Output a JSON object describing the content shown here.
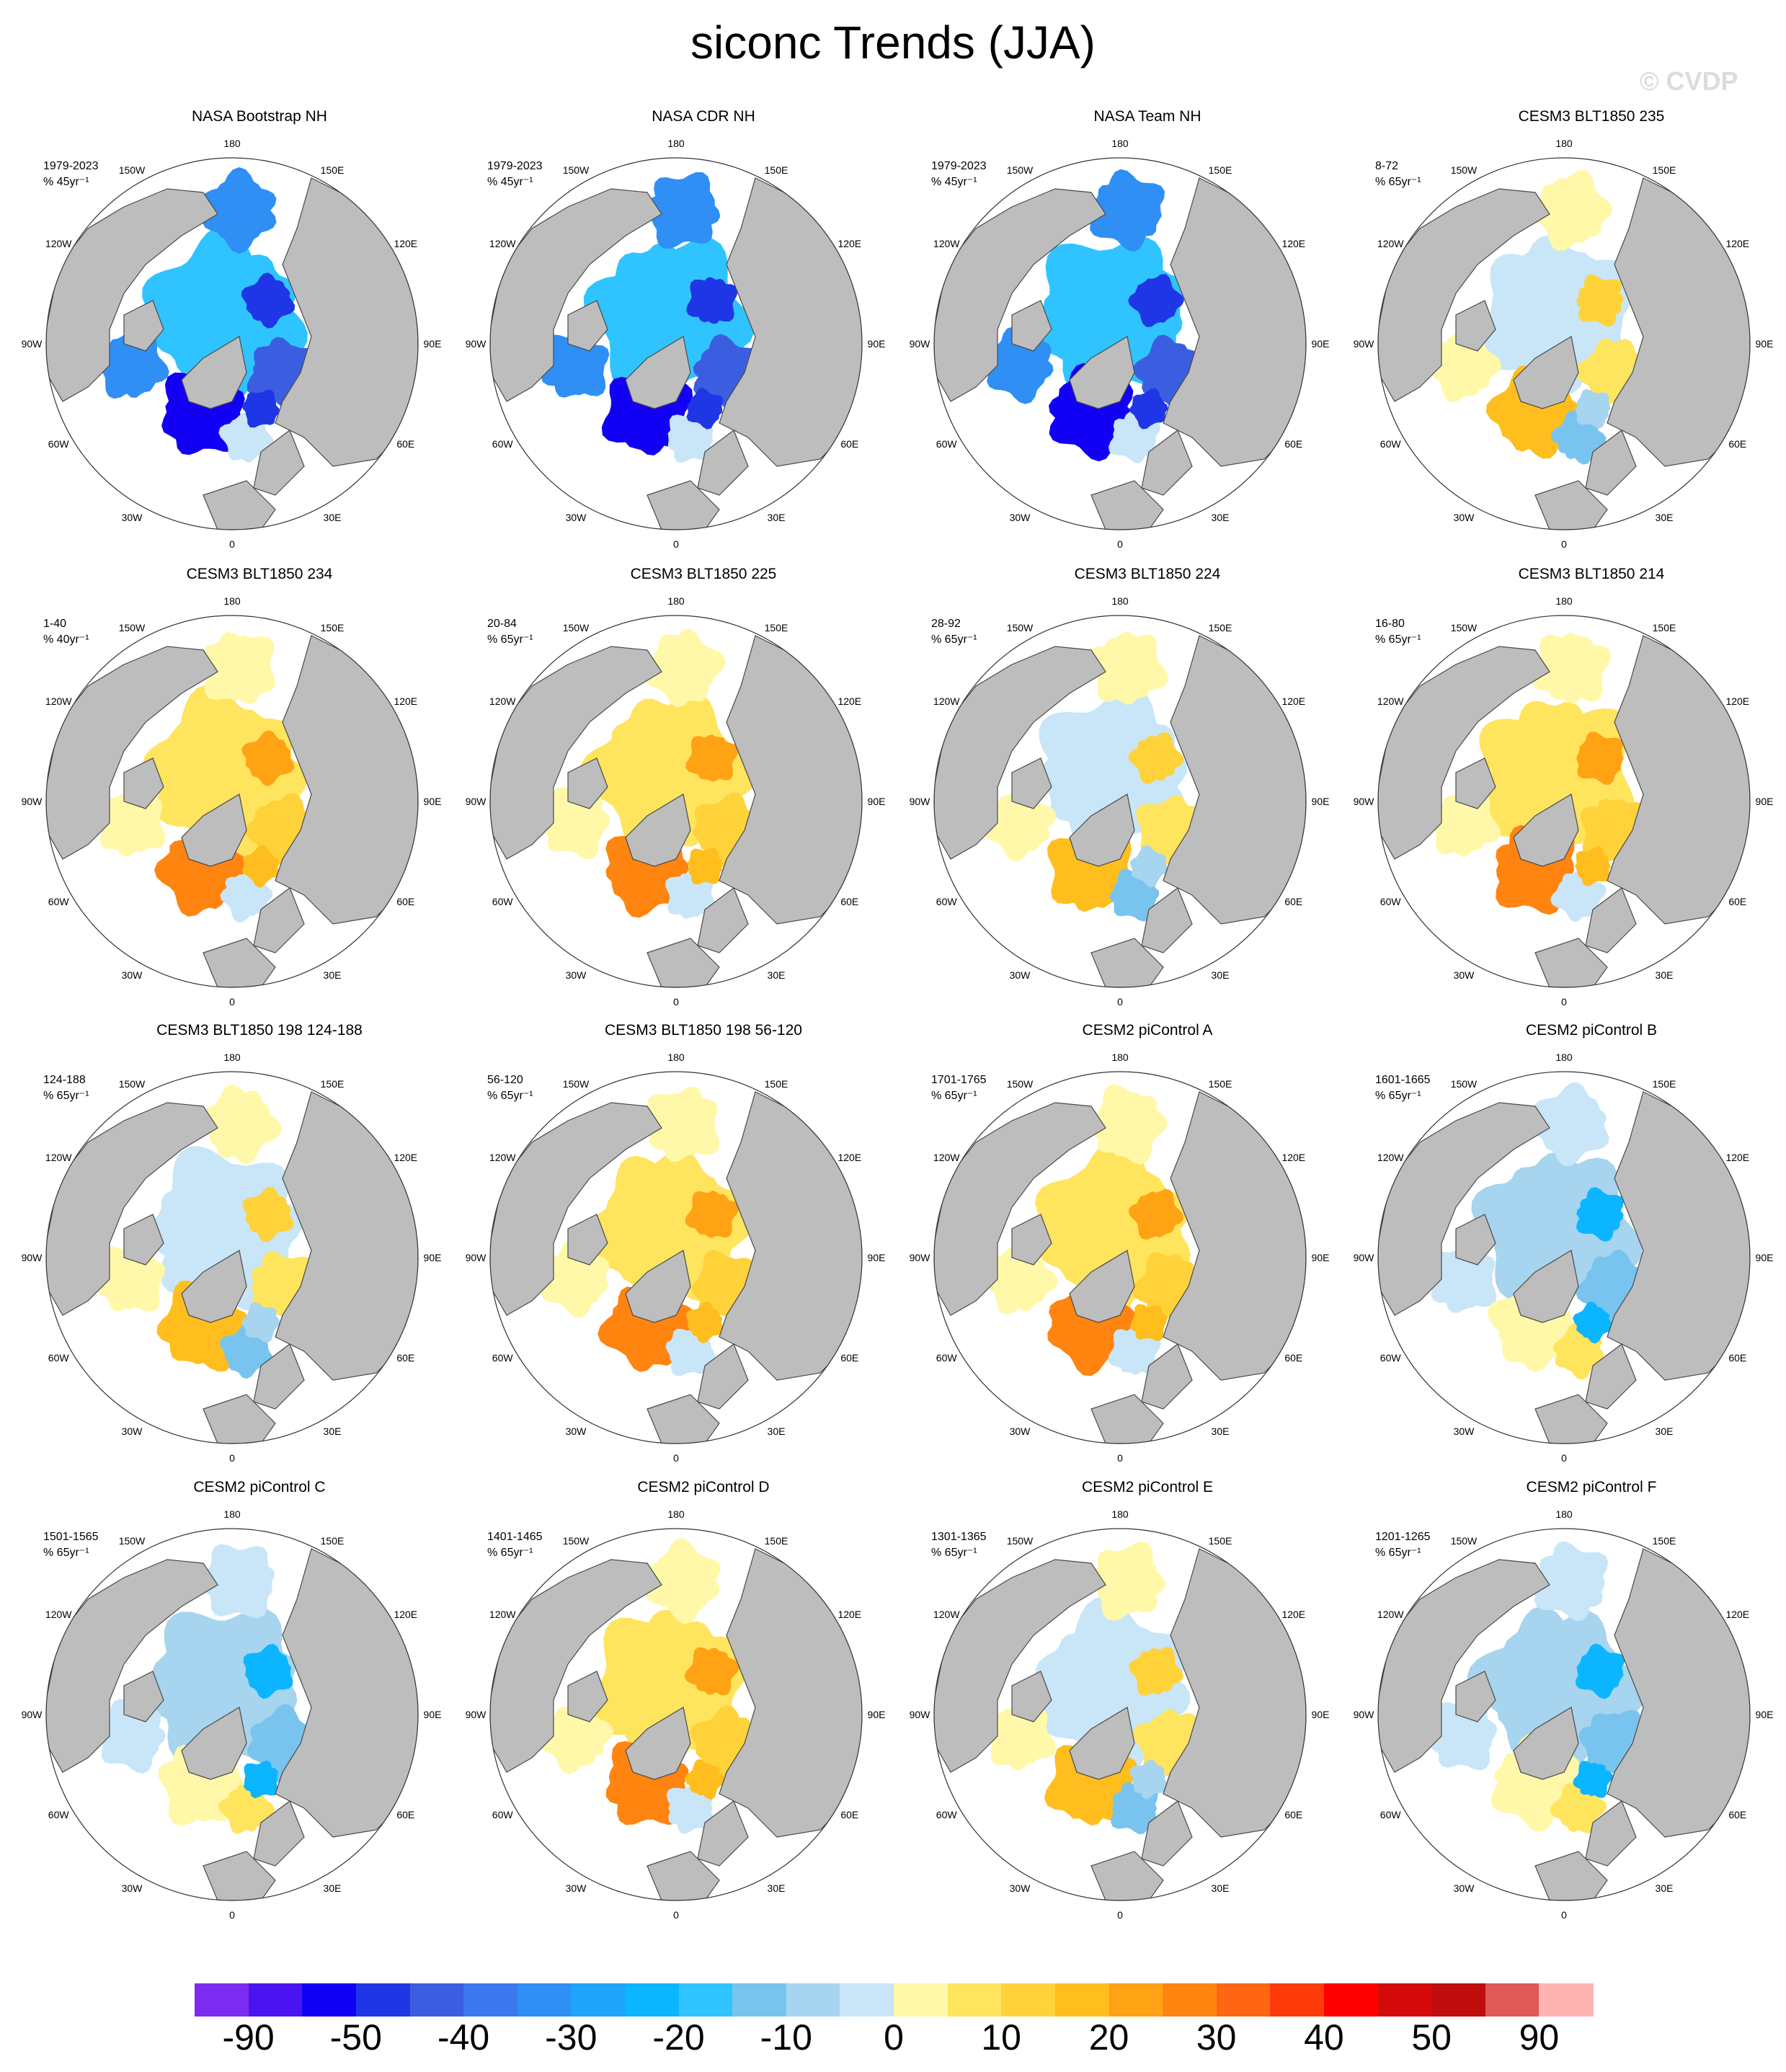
{
  "title": "siconc Trends (JJA)",
  "watermark": "© CVDP",
  "lon_labels": [
    "180",
    "150E",
    "120E",
    "90E",
    "60E",
    "30E",
    "0",
    "30W",
    "60W",
    "90W",
    "120W",
    "150W"
  ],
  "panels": [
    {
      "title": "NASA Bootstrap NH",
      "period": "1979-2023",
      "units": "% 45yr⁻¹",
      "pattern": "obs"
    },
    {
      "title": "NASA CDR NH",
      "period": "1979-2023",
      "units": "% 45yr⁻¹",
      "pattern": "obs"
    },
    {
      "title": "NASA Team NH",
      "period": "1979-2023",
      "units": "% 45yr⁻¹",
      "pattern": "obs"
    },
    {
      "title": "CESM3 BLT1850 235",
      "period": "8-72",
      "units": "% 65yr⁻¹",
      "pattern": "mixed"
    },
    {
      "title": "CESM3 BLT1850 234",
      "period": "1-40",
      "units": "% 40yr⁻¹",
      "pattern": "positive"
    },
    {
      "title": "CESM3 BLT1850 225",
      "period": "20-84",
      "units": "% 65yr⁻¹",
      "pattern": "positive"
    },
    {
      "title": "CESM3 BLT1850 224",
      "period": "28-92",
      "units": "% 65yr⁻¹",
      "pattern": "mixed"
    },
    {
      "title": "CESM3 BLT1850 214",
      "period": "16-80",
      "units": "% 65yr⁻¹",
      "pattern": "positive"
    },
    {
      "title": "CESM3 BLT1850 198 124-188",
      "period": "124-188",
      "units": "% 65yr⁻¹",
      "pattern": "mixed"
    },
    {
      "title": "CESM3 BLT1850 198 56-120",
      "period": "56-120",
      "units": "% 65yr⁻¹",
      "pattern": "positive"
    },
    {
      "title": "CESM2 piControl A",
      "period": "1701-1765",
      "units": "% 65yr⁻¹",
      "pattern": "positive"
    },
    {
      "title": "CESM2 piControl B",
      "period": "1601-1665",
      "units": "% 65yr⁻¹",
      "pattern": "negative"
    },
    {
      "title": "CESM2 piControl C",
      "period": "1501-1565",
      "units": "% 65yr⁻¹",
      "pattern": "negative"
    },
    {
      "title": "CESM2 piControl D",
      "period": "1401-1465",
      "units": "% 65yr⁻¹",
      "pattern": "positive"
    },
    {
      "title": "CESM2 piControl E",
      "period": "1301-1365",
      "units": "% 65yr⁻¹",
      "pattern": "mixed"
    },
    {
      "title": "CESM2 piControl F",
      "period": "1201-1265",
      "units": "% 65yr⁻¹",
      "pattern": "negative"
    }
  ],
  "colorbar": {
    "colors": [
      "#7b2cf0",
      "#4a14f0",
      "#1200f5",
      "#1f36e6",
      "#3b5ee0",
      "#3b78ee",
      "#2f8ff5",
      "#1ea4fb",
      "#0cb5ff",
      "#2fc4ff",
      "#78c4ee",
      "#a7d4ee",
      "#c8e6f8",
      "#fff8a8",
      "#ffe45e",
      "#ffd23a",
      "#ffbe1e",
      "#ffa214",
      "#ff8410",
      "#ff6614",
      "#ff3a0a",
      "#ff0000",
      "#d40a0a",
      "#c00d0d",
      "#e05858",
      "#ffb4b4"
    ],
    "labels": [
      "-90",
      "-50",
      "-40",
      "-30",
      "-20",
      "-10",
      "0",
      "10",
      "20",
      "30",
      "40",
      "50",
      "90"
    ]
  },
  "colors": {
    "land": "#bdbdbd",
    "ocean": "#ffffff",
    "coast": "#4a4a4a"
  }
}
